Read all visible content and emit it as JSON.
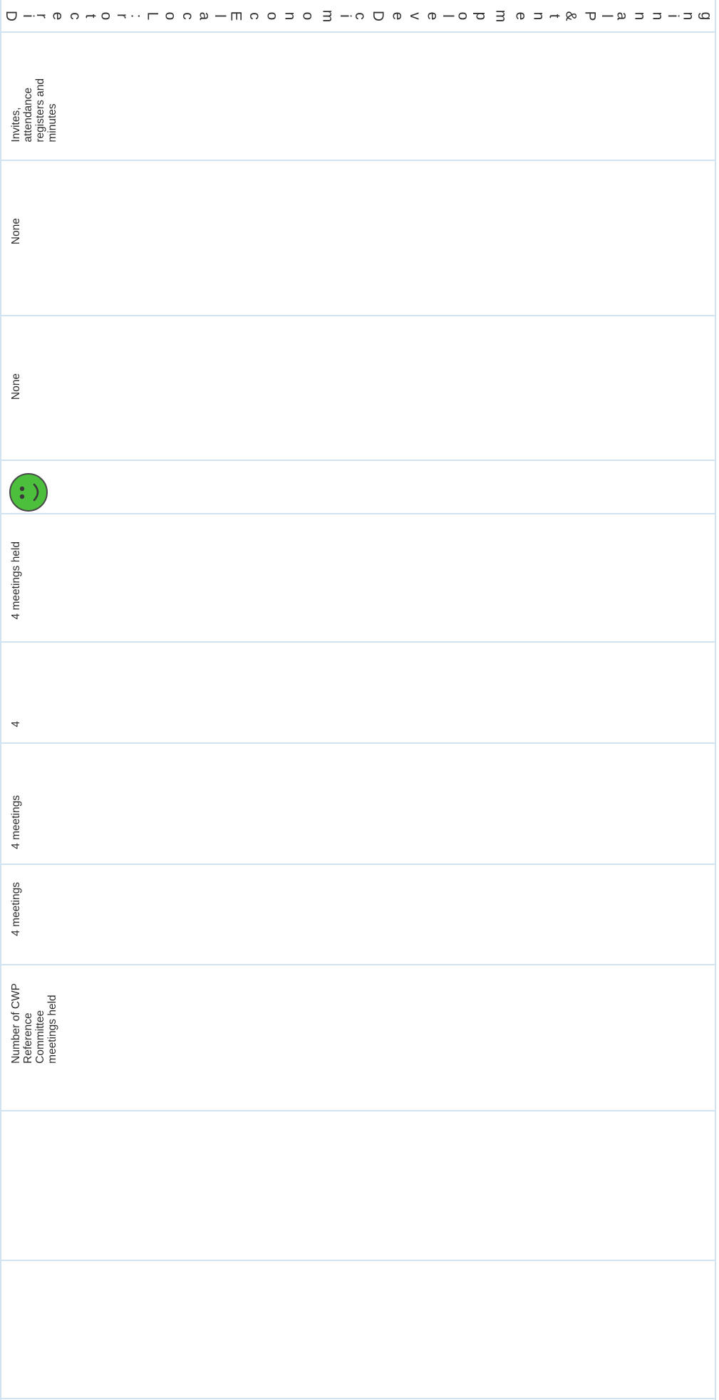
{
  "header": {
    "title": "Director: Local Economic Development & Planning"
  },
  "rows": [
    {
      "text": "Invites,\nattendance\nregisters and\nminutes"
    },
    {
      "text": "None"
    },
    {
      "text": "None"
    },
    {
      "icon": "green-smiley-face-icon",
      "color": "#4cbf3c"
    },
    {
      "text": "4 meetings held"
    },
    {
      "text": "4"
    },
    {
      "text": "4 meetings"
    },
    {
      "text": "4 meetings"
    },
    {
      "text": "Number of CWP\nReference\nCommittee\nmeetings held"
    }
  ]
}
